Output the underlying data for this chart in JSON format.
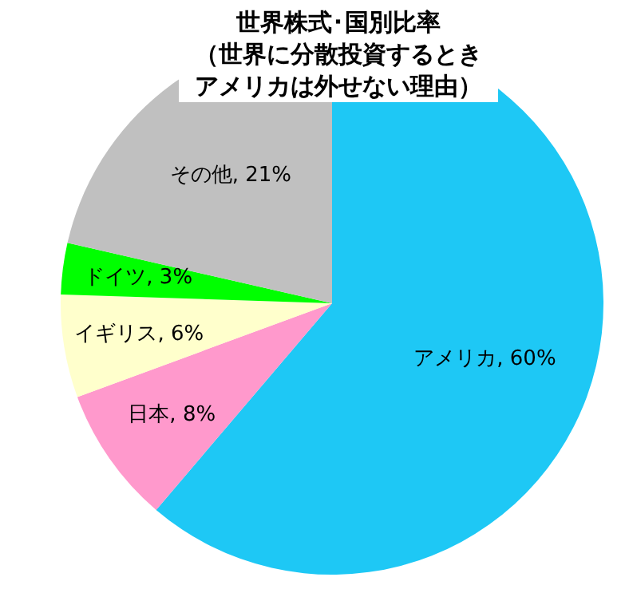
{
  "chart_data": {
    "type": "pie",
    "title": "世界株式･国別比率",
    "subtitle": "（世界に分散投資するときアメリカは外せない理由）",
    "categories": [
      "アメリカ",
      "日本",
      "イギリス",
      "ドイツ",
      "その他"
    ],
    "values": [
      60,
      8,
      6,
      3,
      21
    ],
    "value_labels": [
      "60%",
      "8%",
      "6%",
      "3%",
      "21%"
    ],
    "colors": [
      "#1ec8f5",
      "#ff99cc",
      "#ffffcc",
      "#00ff00",
      "#c0c0c0"
    ],
    "legend": false
  }
}
